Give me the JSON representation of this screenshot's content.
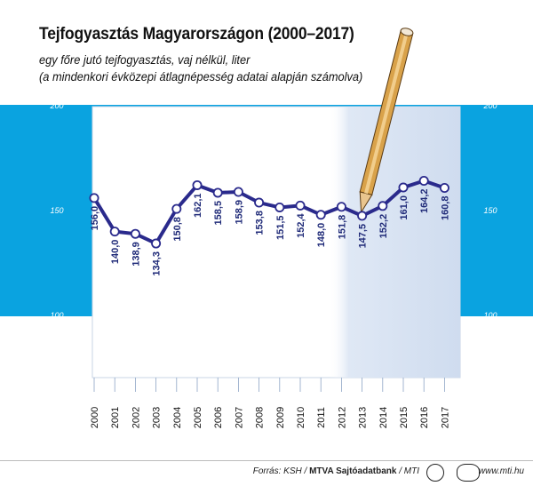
{
  "chart_data": {
    "type": "line",
    "title": "Tejfogyasztás Magyarországon (2000–2017)",
    "subtitle_1": "egy főre jutó tejfogyasztás, vaj nélkül, liter",
    "subtitle_2": "(a mindenkori évközepi átlagnépesség adatai alapján számolva)",
    "categories": [
      "2000",
      "2001",
      "2002",
      "2003",
      "2004",
      "2005",
      "2006",
      "2007",
      "2008",
      "2009",
      "2010",
      "2011",
      "2012",
      "2013",
      "2014",
      "2015",
      "2016",
      "2017"
    ],
    "values": [
      156.0,
      140.0,
      138.9,
      134.3,
      150.8,
      162.1,
      158.5,
      158.9,
      153.8,
      151.5,
      152.4,
      148.0,
      151.8,
      147.5,
      152.2,
      161.0,
      164.2,
      160.8
    ],
    "value_labels": [
      "156,0",
      "140,0",
      "138,9",
      "134,3",
      "150,8",
      "162,1",
      "158,5",
      "158,9",
      "153,8",
      "151,5",
      "152,4",
      "148,0",
      "151,8",
      "147,5",
      "152,2",
      "161,0",
      "164,2",
      "160,8"
    ],
    "y_ticks": [
      200,
      150,
      100
    ],
    "ylim": [
      100,
      200
    ],
    "grid": false,
    "colors": {
      "band": "#0aa3e0",
      "line": "#2a2a8c",
      "marker_fill": "#ffffff",
      "label": "#1f2a78",
      "highlight": "#dfe8f5"
    }
  },
  "footer": {
    "source_prefix": "Forrás: KSH / ",
    "source_bold": "MTVA Sajtóadatbank",
    "source_suffix": " / MTI",
    "site": "www.mti.hu"
  }
}
